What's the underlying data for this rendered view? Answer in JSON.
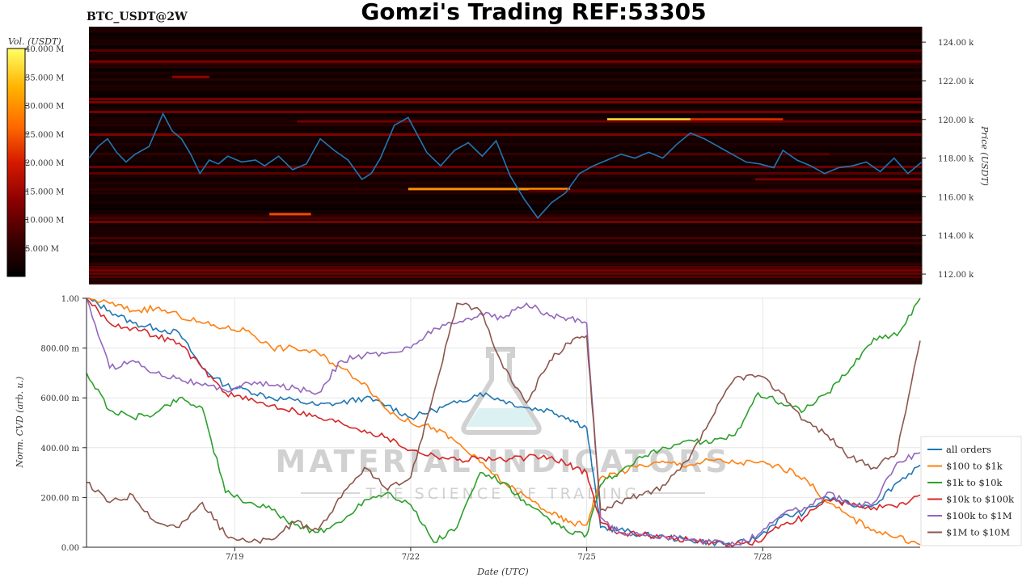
{
  "header": {
    "title": "Gomzi's Trading REF:53305",
    "symbol": "BTC_USDT@2W"
  },
  "watermark": {
    "main": "MATERIAL INDICATORS",
    "sub": "THE SCIENCE OF TRADING"
  },
  "chart_data": [
    {
      "type": "heatmap",
      "title": "BTC_USDT@2W",
      "ylabel": "Price (USDT)",
      "ylim": [
        111500,
        124800
      ],
      "ytick_labels": [
        "112.00 k",
        "114.00 k",
        "116.00 k",
        "118.00 k",
        "120.00 k",
        "122.00 k",
        "124.00 k"
      ],
      "ytick_values": [
        112000,
        114000,
        116000,
        118000,
        120000,
        122000,
        124000
      ],
      "colorbar": {
        "label": "Vol. (USDT)",
        "range": [
          0,
          40000000
        ],
        "tick_labels": [
          "5.000 M",
          "10.000 M",
          "15.000 M",
          "20.000 M",
          "25.000 M",
          "30.000 M",
          "35.000 M",
          "40.000 M"
        ],
        "tick_values": [
          5000000,
          10000000,
          15000000,
          20000000,
          25000000,
          30000000,
          35000000,
          40000000
        ],
        "colors": [
          "#000000",
          "#3a0000",
          "#8b0000",
          "#d41a00",
          "#ff6a00",
          "#ffb300",
          "#ffff66"
        ]
      },
      "liquidity_bands": [
        {
          "price": 120000,
          "t_start": 11.2,
          "t_end": 13.0,
          "volume": 38000000
        },
        {
          "price": 116400,
          "t_start": 6.9,
          "t_end": 10.4,
          "volume": 30000000
        },
        {
          "price": 115100,
          "t_start": 3.9,
          "t_end": 4.8,
          "volume": 24000000
        },
        {
          "price": 120000,
          "t_start": 13.0,
          "t_end": 15.0,
          "volume": 22000000
        },
        {
          "price": 122200,
          "t_start": 1.8,
          "t_end": 2.6,
          "volume": 14000000
        },
        {
          "price": 123000,
          "t_start": 0,
          "t_end": 18,
          "volume": 12000000
        },
        {
          "price": 119900,
          "t_start": 4.5,
          "t_end": 18,
          "volume": 11000000
        },
        {
          "price": 116900,
          "t_start": 14.4,
          "t_end": 18,
          "volume": 12000000
        },
        {
          "price": 116300,
          "t_start": 9.5,
          "t_end": 18,
          "volume": 9000000
        },
        {
          "price": 114900,
          "t_start": 0,
          "t_end": 18,
          "volume": 8000000
        },
        {
          "price": 112300,
          "t_start": 0,
          "t_end": 18,
          "volume": 8000000
        },
        {
          "price": 113600,
          "t_start": 0,
          "t_end": 18,
          "volume": 7000000
        },
        {
          "price": 118200,
          "t_start": 12.5,
          "t_end": 16,
          "volume": 9000000
        }
      ],
      "price_series": {
        "name": "",
        "color": "#1f77b4",
        "x": [
          0,
          0.2,
          0.4,
          0.6,
          0.8,
          1.0,
          1.3,
          1.6,
          1.8,
          2.0,
          2.2,
          2.4,
          2.6,
          2.8,
          3.0,
          3.3,
          3.6,
          3.8,
          4.1,
          4.4,
          4.7,
          5.0,
          5.3,
          5.6,
          5.9,
          6.1,
          6.3,
          6.6,
          6.9,
          7.1,
          7.3,
          7.6,
          7.9,
          8.2,
          8.5,
          8.8,
          9.1,
          9.4,
          9.7,
          10.0,
          10.3,
          10.6,
          10.9,
          11.2,
          11.5,
          11.8,
          12.1,
          12.4,
          12.7,
          13.0,
          13.3,
          13.6,
          13.9,
          14.2,
          14.5,
          14.8,
          15.0,
          15.3,
          15.6,
          15.9,
          16.2,
          16.5,
          16.8,
          17.1,
          17.4,
          17.7,
          18.0
        ],
        "y": [
          118000,
          118600,
          119000,
          118300,
          117800,
          118200,
          118600,
          120300,
          119400,
          119000,
          118200,
          117200,
          117900,
          117700,
          118100,
          117800,
          117900,
          117600,
          118100,
          117400,
          117700,
          119000,
          118400,
          117900,
          116900,
          117200,
          118000,
          119700,
          120100,
          119200,
          118300,
          117600,
          118400,
          118800,
          118100,
          118900,
          117100,
          115900,
          114900,
          115700,
          116200,
          117200,
          117600,
          117900,
          118200,
          118000,
          118300,
          118000,
          118700,
          119300,
          119000,
          118600,
          118200,
          117800,
          117700,
          117500,
          118400,
          117900,
          117600,
          117200,
          117500,
          117600,
          117800,
          117300,
          118000,
          117200,
          117800
        ]
      }
    },
    {
      "type": "line",
      "xlabel": "Date (UTC)",
      "ylabel": "Norm. CVD (arb. u.)",
      "ylim": [
        0,
        1.0
      ],
      "ytick_labels": [
        "0.00",
        "200.00 m",
        "400.00 m",
        "600.00 m",
        "800.00 m",
        "1.00"
      ],
      "ytick_values": [
        0,
        0.2,
        0.4,
        0.6,
        0.8,
        1.0
      ],
      "xlim": [
        0,
        18
      ],
      "xtick_labels": [
        "7/19",
        "7/22",
        "7/25",
        "7/28"
      ],
      "xtick_values": [
        3.2,
        7.0,
        10.8,
        14.6
      ],
      "legend_position": "bottom-right",
      "x": [
        0,
        0.5,
        1.0,
        1.5,
        2.0,
        2.5,
        3.0,
        3.5,
        4.0,
        4.5,
        5.0,
        5.5,
        6.0,
        6.5,
        7.0,
        7.5,
        8.0,
        8.5,
        9.0,
        9.5,
        10.0,
        10.4,
        10.8,
        11.1,
        11.5,
        12.0,
        12.5,
        13.0,
        13.5,
        14.0,
        14.5,
        15.0,
        15.5,
        16.0,
        16.5,
        17.0,
        17.5,
        18.0
      ],
      "series": [
        {
          "name": "all orders",
          "color": "#1f77b4",
          "values": [
            1.0,
            0.95,
            0.9,
            0.88,
            0.86,
            0.72,
            0.65,
            0.63,
            0.6,
            0.59,
            0.57,
            0.58,
            0.6,
            0.57,
            0.52,
            0.55,
            0.58,
            0.62,
            0.59,
            0.56,
            0.55,
            0.52,
            0.48,
            0.08,
            0.07,
            0.05,
            0.04,
            0.03,
            0.02,
            0.01,
            0.04,
            0.12,
            0.14,
            0.2,
            0.17,
            0.17,
            0.26,
            0.33
          ]
        },
        {
          "name": "$100 to $1k",
          "color": "#ff7f0e",
          "values": [
            1.0,
            0.98,
            0.95,
            0.96,
            0.93,
            0.9,
            0.88,
            0.87,
            0.8,
            0.8,
            0.78,
            0.72,
            0.66,
            0.55,
            0.5,
            0.48,
            0.42,
            0.34,
            0.26,
            0.2,
            0.14,
            0.1,
            0.09,
            0.28,
            0.3,
            0.33,
            0.34,
            0.33,
            0.35,
            0.34,
            0.34,
            0.32,
            0.28,
            0.18,
            0.12,
            0.07,
            0.04,
            0.01
          ]
        },
        {
          "name": "$1k to $10k",
          "color": "#2ca02c",
          "values": [
            0.7,
            0.55,
            0.52,
            0.54,
            0.6,
            0.56,
            0.22,
            0.18,
            0.15,
            0.09,
            0.06,
            0.1,
            0.19,
            0.22,
            0.17,
            0.02,
            0.08,
            0.3,
            0.26,
            0.17,
            0.11,
            0.06,
            0.05,
            0.25,
            0.3,
            0.36,
            0.4,
            0.43,
            0.42,
            0.45,
            0.62,
            0.58,
            0.55,
            0.62,
            0.72,
            0.84,
            0.85,
            1.0
          ]
        },
        {
          "name": "$10k to $100k",
          "color": "#d62728",
          "values": [
            1.0,
            0.9,
            0.88,
            0.85,
            0.82,
            0.72,
            0.62,
            0.59,
            0.57,
            0.55,
            0.52,
            0.5,
            0.47,
            0.44,
            0.39,
            0.37,
            0.35,
            0.36,
            0.35,
            0.36,
            0.36,
            0.33,
            0.3,
            0.1,
            0.06,
            0.05,
            0.04,
            0.03,
            0.02,
            0.01,
            0.02,
            0.09,
            0.12,
            0.19,
            0.17,
            0.16,
            0.16,
            0.21
          ]
        },
        {
          "name": "$100k to $1M",
          "color": "#9467bd",
          "values": [
            1.0,
            0.72,
            0.75,
            0.7,
            0.68,
            0.65,
            0.63,
            0.66,
            0.65,
            0.64,
            0.62,
            0.75,
            0.77,
            0.78,
            0.8,
            0.88,
            0.9,
            0.94,
            0.92,
            0.98,
            0.93,
            0.92,
            0.9,
            0.12,
            0.06,
            0.05,
            0.04,
            0.03,
            0.02,
            0.01,
            0.05,
            0.13,
            0.16,
            0.22,
            0.17,
            0.18,
            0.34,
            0.38
          ]
        },
        {
          "name": "$1M to $10M",
          "color": "#8c564b",
          "values": [
            0.26,
            0.18,
            0.21,
            0.1,
            0.08,
            0.18,
            0.05,
            0.02,
            0.03,
            0.1,
            0.07,
            0.2,
            0.32,
            0.23,
            0.28,
            0.62,
            0.98,
            0.95,
            0.72,
            0.58,
            0.75,
            0.82,
            0.85,
            0.15,
            0.18,
            0.21,
            0.25,
            0.35,
            0.52,
            0.68,
            0.69,
            0.62,
            0.51,
            0.45,
            0.36,
            0.32,
            0.38,
            0.83
          ]
        }
      ]
    }
  ]
}
